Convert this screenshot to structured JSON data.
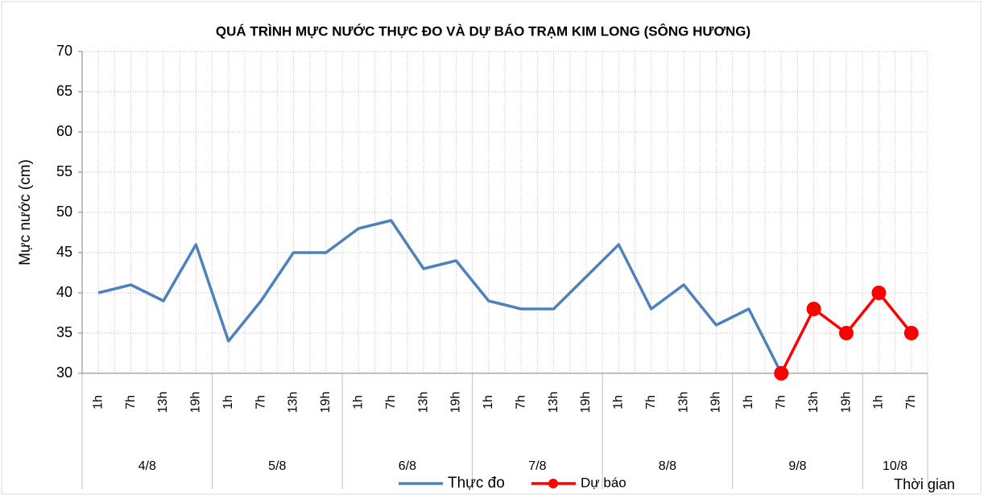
{
  "chart_data": {
    "type": "line",
    "title": "QUÁ TRÌNH MỰC NƯỚC THỰC ĐO VÀ DỰ BÁO TRẠM KIM LONG (SÔNG HƯƠNG)",
    "y_label": "Mực nước (cm)",
    "x_label": "Thời gian",
    "categories": [
      "1h",
      "7h",
      "13h",
      "19h",
      "1h",
      "7h",
      "13h",
      "19h",
      "1h",
      "7h",
      "13h",
      "19h",
      "1h",
      "7h",
      "13h",
      "19h",
      "1h",
      "7h",
      "13h",
      "19h",
      "1h",
      "7h",
      "13h",
      "19h",
      "1h",
      "7h"
    ],
    "category_groups": [
      "4/8",
      "5/8",
      "6/8",
      "7/8",
      "8/8",
      "9/8",
      "10/8"
    ],
    "series": [
      {
        "name": "Thực đo",
        "color": "#4f81bd",
        "values": [
          40,
          41,
          39,
          46,
          34,
          39,
          45,
          45,
          48,
          49,
          43,
          44,
          39,
          38,
          38,
          42,
          46,
          38,
          41,
          36,
          38,
          30,
          null,
          null,
          null,
          null
        ]
      },
      {
        "name": "Dự báo",
        "color": "#ff0000",
        "values": [
          null,
          null,
          null,
          null,
          null,
          null,
          null,
          null,
          null,
          null,
          null,
          null,
          null,
          null,
          null,
          null,
          null,
          null,
          null,
          null,
          null,
          30,
          38,
          35,
          40,
          35
        ]
      }
    ],
    "ylim": [
      30,
      70
    ],
    "yticks": [
      30,
      35,
      40,
      45,
      50,
      55,
      60,
      65,
      70
    ],
    "grid": true
  }
}
